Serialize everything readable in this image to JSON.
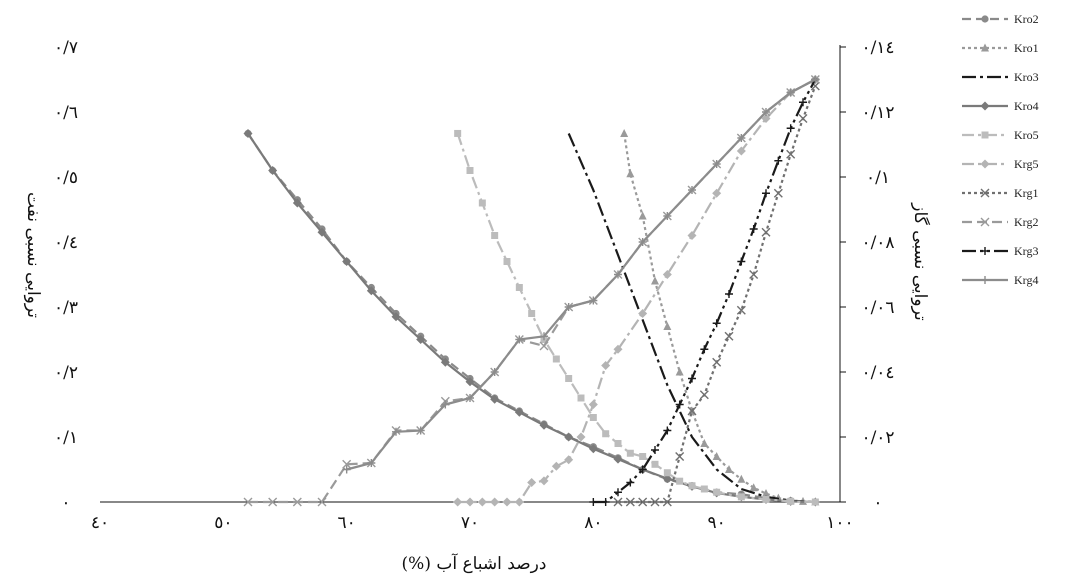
{
  "chart_data": {
    "type": "line",
    "xlabel": "درصد اشباع آب (%)",
    "ylabel_left": "تروایی نسبی نفت",
    "ylabel_right": "تروایی نسبی گاز",
    "xlim": [
      40,
      100
    ],
    "ylim_left": [
      0,
      0.7
    ],
    "ylim_right": [
      0,
      0.14
    ],
    "x_ticks": [
      {
        "value": 40,
        "label": "٤٠"
      },
      {
        "value": 50,
        "label": "٥٠"
      },
      {
        "value": 60,
        "label": "٦٠"
      },
      {
        "value": 70,
        "label": "٧٠"
      },
      {
        "value": 80,
        "label": "٨٠"
      },
      {
        "value": 90,
        "label": "٩٠"
      },
      {
        "value": 100,
        "label": "١٠٠"
      }
    ],
    "y_left_ticks": [
      {
        "value": 0,
        "label": "٠"
      },
      {
        "value": 0.1,
        "label": "٠/١"
      },
      {
        "value": 0.2,
        "label": "٠/٢"
      },
      {
        "value": 0.3,
        "label": "٠/٣"
      },
      {
        "value": 0.4,
        "label": "٠/٤"
      },
      {
        "value": 0.5,
        "label": "٠/٥"
      },
      {
        "value": 0.6,
        "label": "٠/٦"
      },
      {
        "value": 0.7,
        "label": "٠/٧"
      }
    ],
    "y_right_ticks": [
      {
        "value": 0,
        "label": "٠"
      },
      {
        "value": 0.02,
        "label": "٠/٠٢"
      },
      {
        "value": 0.04,
        "label": "٠/٠٤"
      },
      {
        "value": 0.06,
        "label": "٠/٠٦"
      },
      {
        "value": 0.08,
        "label": "٠/٠٨"
      },
      {
        "value": 0.1,
        "label": "٠/١"
      },
      {
        "value": 0.12,
        "label": "٠/١٢"
      },
      {
        "value": 0.14,
        "label": "٠/١٤"
      }
    ],
    "grid": false,
    "legend_position": "right",
    "series": [
      {
        "name": "Kro2",
        "axis": "left",
        "color": "#8a8a8a",
        "dash": "9,5",
        "marker": "circle",
        "x": [
          52,
          54,
          56,
          58,
          60,
          62,
          64,
          66,
          68,
          70,
          72,
          74,
          76,
          78,
          80,
          82,
          84,
          86,
          88,
          90,
          92,
          94,
          96,
          98
        ],
        "y": [
          0.567,
          0.51,
          0.465,
          0.42,
          0.37,
          0.33,
          0.29,
          0.255,
          0.22,
          0.19,
          0.16,
          0.14,
          0.12,
          0.1,
          0.085,
          0.068,
          0.05,
          0.035,
          0.025,
          0.015,
          0.012,
          0.006,
          0.002,
          0.0
        ]
      },
      {
        "name": "Kro1",
        "axis": "left",
        "color": "#9a9a9a",
        "dash": "3,3",
        "marker": "triangle",
        "x": [
          82.5,
          83,
          84,
          85,
          86,
          87,
          88,
          89,
          90,
          91,
          92,
          93,
          94,
          95,
          96,
          97,
          98
        ],
        "y": [
          0.567,
          0.505,
          0.44,
          0.34,
          0.27,
          0.2,
          0.14,
          0.09,
          0.07,
          0.05,
          0.035,
          0.022,
          0.013,
          0.006,
          0.002,
          0.001,
          0.0
        ]
      },
      {
        "name": "Kro3",
        "axis": "left",
        "color": "#1a1a1a",
        "dash": "14,4,3,4",
        "marker": "none",
        "x": [
          78,
          80,
          82,
          84,
          86,
          88,
          90,
          92,
          94,
          96,
          98
        ],
        "y": [
          0.567,
          0.48,
          0.38,
          0.28,
          0.18,
          0.1,
          0.05,
          0.02,
          0.008,
          0.002,
          0.0
        ]
      },
      {
        "name": "Kro4",
        "axis": "left",
        "color": "#7a7a7a",
        "dash": "",
        "marker": "diamond",
        "x": [
          52,
          54,
          56,
          58,
          60,
          62,
          64,
          66,
          68,
          70,
          72,
          74,
          76,
          78,
          80,
          82,
          84,
          86,
          88,
          90,
          92,
          94,
          96,
          98
        ],
        "y": [
          0.567,
          0.51,
          0.46,
          0.415,
          0.37,
          0.325,
          0.285,
          0.25,
          0.215,
          0.185,
          0.158,
          0.138,
          0.118,
          0.1,
          0.082,
          0.066,
          0.05,
          0.036,
          0.024,
          0.014,
          0.008,
          0.004,
          0.001,
          0.0
        ]
      },
      {
        "name": "Kro5",
        "axis": "left",
        "color": "#bcbcbc",
        "dash": "12,4,3,4",
        "marker": "square",
        "x": [
          69,
          70,
          71,
          72,
          73,
          74,
          75,
          76,
          77,
          78,
          79,
          80,
          81,
          82,
          83,
          84,
          85,
          86,
          87,
          88,
          89,
          90,
          92,
          94,
          96,
          98
        ],
        "y": [
          0.567,
          0.51,
          0.46,
          0.41,
          0.37,
          0.33,
          0.29,
          0.25,
          0.22,
          0.19,
          0.16,
          0.13,
          0.105,
          0.09,
          0.075,
          0.07,
          0.058,
          0.045,
          0.032,
          0.025,
          0.02,
          0.015,
          0.008,
          0.004,
          0.001,
          0.0
        ]
      },
      {
        "name": "Krg5",
        "axis": "right",
        "color": "#b4b4b4",
        "dash": "12,4,3,4",
        "marker": "diamond",
        "x": [
          69,
          70,
          71,
          72,
          73,
          74,
          75,
          76,
          77,
          78,
          79,
          80,
          81,
          82,
          84,
          86,
          88,
          90,
          92,
          94,
          96,
          98
        ],
        "y": [
          0.0,
          0.0,
          0.0,
          0.0,
          0.0,
          0.0,
          0.006,
          0.0065,
          0.011,
          0.013,
          0.02,
          0.03,
          0.042,
          0.047,
          0.058,
          0.07,
          0.082,
          0.095,
          0.108,
          0.118,
          0.126,
          0.13
        ]
      },
      {
        "name": "Krg1",
        "axis": "right",
        "color": "#707070",
        "dash": "3,3",
        "marker": "x",
        "x": [
          82,
          83,
          84,
          85,
          86,
          87,
          88,
          89,
          90,
          91,
          92,
          93,
          94,
          95,
          96,
          97,
          98
        ],
        "y": [
          0.0,
          0.0,
          0.0,
          0.0,
          0.0,
          0.014,
          0.028,
          0.033,
          0.043,
          0.051,
          0.059,
          0.07,
          0.083,
          0.095,
          0.107,
          0.118,
          0.128
        ]
      },
      {
        "name": "Krg2",
        "axis": "left",
        "color": "#9a9a9a",
        "dash": "10,5",
        "marker": "x",
        "x": [
          52,
          54,
          56,
          58,
          60,
          62,
          64,
          66,
          68,
          70,
          72,
          74,
          76,
          78,
          80,
          82,
          84,
          86,
          88,
          90,
          92,
          94,
          96,
          98
        ],
        "y": [
          0.0,
          0.0,
          0.0,
          0.0,
          0.058,
          0.06,
          0.11,
          0.11,
          0.155,
          0.16,
          0.2,
          0.25,
          0.24,
          0.3,
          0.31,
          0.35,
          0.4,
          0.44,
          0.48,
          0.52,
          0.56,
          0.6,
          0.63,
          0.65
        ]
      },
      {
        "name": "Krg3",
        "axis": "right",
        "color": "#1a1a1a",
        "dash": "14,4,3,4,3,4",
        "marker": "plus",
        "x": [
          80,
          81,
          82,
          83,
          84,
          85,
          86,
          87,
          88,
          89,
          90,
          91,
          92,
          93,
          94,
          95,
          96,
          97,
          98
        ],
        "y": [
          0.0,
          0.0,
          0.003,
          0.006,
          0.01,
          0.016,
          0.022,
          0.03,
          0.038,
          0.047,
          0.055,
          0.064,
          0.074,
          0.084,
          0.095,
          0.105,
          0.115,
          0.123,
          0.13
        ]
      },
      {
        "name": "Krg4",
        "axis": "left",
        "color": "#8c8c8c",
        "dash": "",
        "marker": "plus",
        "x": [
          60,
          62,
          64,
          66,
          68,
          70,
          72,
          74,
          76,
          78,
          80,
          82,
          84,
          86,
          88,
          90,
          92,
          94,
          96,
          98
        ],
        "y": [
          0.05,
          0.06,
          0.108,
          0.11,
          0.15,
          0.16,
          0.2,
          0.25,
          0.255,
          0.3,
          0.31,
          0.35,
          0.4,
          0.44,
          0.48,
          0.52,
          0.56,
          0.6,
          0.63,
          0.65
        ]
      }
    ]
  }
}
